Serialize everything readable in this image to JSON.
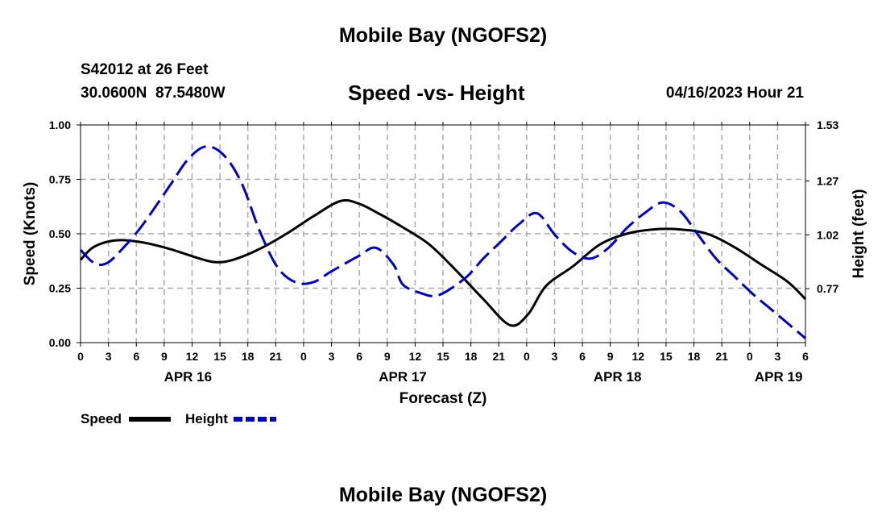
{
  "header": {
    "title": "Mobile Bay (NGOFS2)",
    "station": "S42012 at 26 Feet",
    "coords": "30.0600N  87.5480W",
    "subtitle": "Speed -vs- Height",
    "datetime": "04/16/2023 Hour 21"
  },
  "footer": {
    "title": "Mobile Bay (NGOFS2)"
  },
  "legend": {
    "speed_label": "Speed",
    "height_label": "Height"
  },
  "colors": {
    "speed": "#000000",
    "height": "#0000cc",
    "grid": "#aaaaaa"
  },
  "chart_data": {
    "type": "line",
    "title": "Speed -vs- Height",
    "xlabel": "Forecast (Z)",
    "ylabel": "Speed (Knots)",
    "y2label": "Height (feet)",
    "x_range_hours": [
      0,
      81
    ],
    "x_tick_labels": [
      "0",
      "3",
      "6",
      "9",
      "12",
      "15",
      "18",
      "21",
      "0",
      "3",
      "6",
      "9",
      "12",
      "15",
      "18",
      "21",
      "0",
      "3",
      "6",
      "9",
      "12",
      "15",
      "18",
      "21",
      "0",
      "3",
      "6"
    ],
    "date_labels": [
      {
        "hour": 12,
        "label": "APR 16"
      },
      {
        "hour": 36,
        "label": "APR 17"
      },
      {
        "hour": 60,
        "label": "APR 18"
      },
      {
        "hour": 78,
        "label": "APR 19"
      }
    ],
    "ylim": [
      0,
      1.0
    ],
    "y_ticks": [
      "0.00",
      "0.25",
      "0.50",
      "0.75",
      "1.00"
    ],
    "y2lim": [
      0.52,
      1.53
    ],
    "y2_ticks": [
      0.77,
      1.02,
      1.27,
      1.53
    ],
    "y2_tick_labels": [
      "0.77",
      "1.02",
      "1.27",
      "1.53"
    ],
    "series": [
      {
        "name": "Speed",
        "axis": "left",
        "style": "solid",
        "x": [
          0,
          1.5,
          4,
          7,
          10,
          13,
          15,
          17,
          20,
          23,
          26,
          29,
          31,
          33,
          36,
          39,
          42,
          45,
          48,
          50,
          52,
          55,
          58,
          61,
          64,
          67,
          70,
          73,
          76,
          79,
          81
        ],
        "values": [
          0.38,
          0.44,
          0.47,
          0.46,
          0.43,
          0.39,
          0.37,
          0.38,
          0.43,
          0.5,
          0.58,
          0.65,
          0.64,
          0.6,
          0.53,
          0.45,
          0.33,
          0.2,
          0.08,
          0.13,
          0.26,
          0.35,
          0.45,
          0.5,
          0.52,
          0.52,
          0.5,
          0.44,
          0.36,
          0.28,
          0.2
        ]
      },
      {
        "name": "Height",
        "axis": "right",
        "style": "dashed",
        "x": [
          0,
          1.5,
          3,
          5,
          7,
          10,
          12,
          14,
          16,
          18,
          20,
          22,
          24,
          26,
          28,
          31,
          33,
          35,
          36,
          38,
          40,
          43,
          45,
          47,
          49,
          51,
          53,
          55,
          57,
          59,
          61,
          63,
          65,
          67,
          69,
          71,
          73,
          75,
          77,
          79,
          81
        ],
        "values": [
          0.95,
          0.89,
          0.89,
          0.97,
          1.07,
          1.25,
          1.37,
          1.43,
          1.39,
          1.26,
          1.04,
          0.87,
          0.8,
          0.8,
          0.85,
          0.92,
          0.96,
          0.88,
          0.79,
          0.75,
          0.74,
          0.82,
          0.91,
          0.99,
          1.07,
          1.12,
          1.02,
          0.94,
          0.91,
          0.96,
          1.05,
          1.12,
          1.17,
          1.13,
          1.02,
          0.91,
          0.83,
          0.75,
          0.68,
          0.61,
          0.54
        ]
      }
    ]
  }
}
